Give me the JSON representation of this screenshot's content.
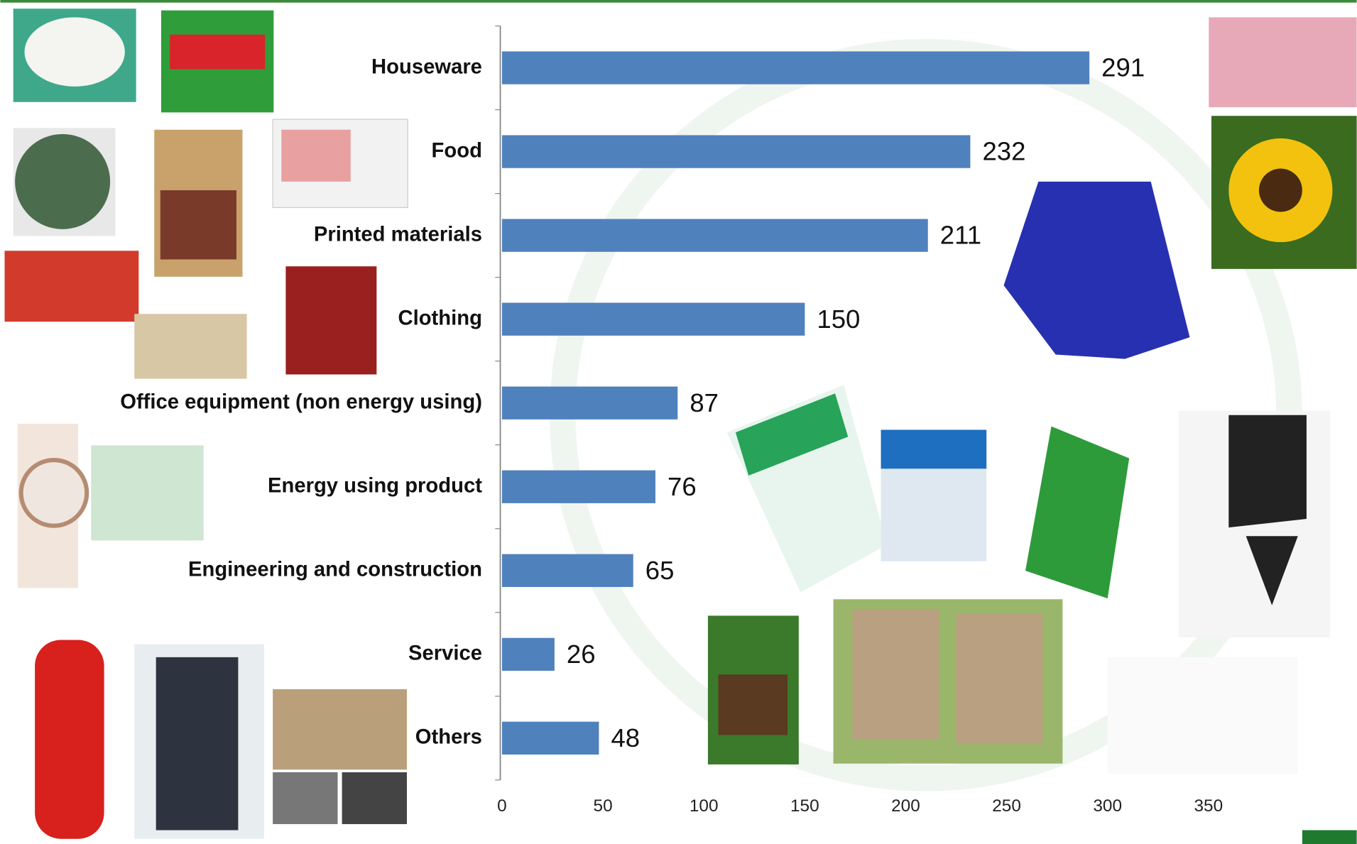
{
  "chart_data": {
    "type": "bar",
    "orientation": "horizontal",
    "categories": [
      "Houseware",
      "Food",
      "Printed materials",
      "Clothing",
      "Office equipment (non energy using)",
      "Energy using product",
      "Engineering and construction",
      "Service",
      "Others"
    ],
    "values": [
      291,
      232,
      211,
      150,
      87,
      76,
      65,
      26,
      48
    ],
    "color": "#4f81bd",
    "xlim": [
      0,
      400
    ],
    "xticks": [
      0,
      50,
      100,
      150,
      200,
      250,
      300,
      350
    ],
    "grid": false
  }
}
